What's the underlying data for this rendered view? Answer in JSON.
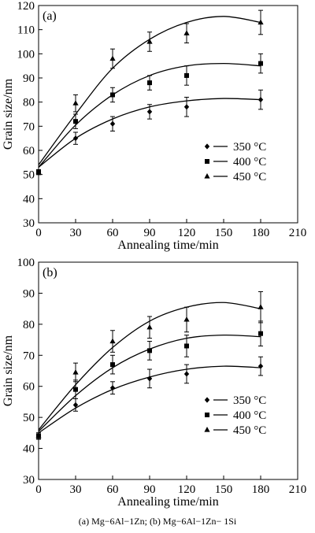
{
  "caption": "(a)  Mg−6Al−1Zn;  (b)  Mg−6Al−1Zn− 1Si",
  "chart_data": [
    {
      "type": "scatter",
      "panel_label": "(a)",
      "xlabel": "Annealing time/min",
      "ylabel": "Grain size/nm",
      "xlim": [
        0,
        210
      ],
      "ylim": [
        30,
        120
      ],
      "xticks": [
        0,
        30,
        60,
        90,
        120,
        150,
        180,
        210
      ],
      "yticks": [
        30,
        40,
        50,
        60,
        70,
        80,
        90,
        100,
        110,
        120
      ],
      "grid": false,
      "legend_position": "center-right",
      "x": [
        0,
        30,
        60,
        90,
        120,
        180
      ],
      "series": [
        {
          "name": "350 °C",
          "marker": "diamond",
          "values": [
            51,
            65,
            71,
            76,
            78,
            81
          ],
          "errors": [
            1,
            2.5,
            3,
            3,
            4,
            4
          ],
          "fit_curve": [
            [
              0,
              53
            ],
            [
              30,
              65
            ],
            [
              60,
              73
            ],
            [
              90,
              78
            ],
            [
              120,
              80.5
            ],
            [
              150,
              81.5
            ],
            [
              180,
              81
            ]
          ]
        },
        {
          "name": "400 °C",
          "marker": "square",
          "values": [
            51,
            72,
            83,
            88,
            91,
            96
          ],
          "errors": [
            1,
            3,
            3,
            3,
            4,
            4
          ],
          "fit_curve": [
            [
              0,
              53
            ],
            [
              30,
              70.5
            ],
            [
              60,
              83
            ],
            [
              90,
              91
            ],
            [
              120,
              95
            ],
            [
              150,
              96
            ],
            [
              180,
              95
            ]
          ]
        },
        {
          "name": "450 °C",
          "marker": "triangle",
          "values": [
            51,
            79.5,
            98,
            105,
            108.5,
            113
          ],
          "errors": [
            1,
            3.5,
            4,
            4,
            4,
            5
          ],
          "fit_curve": [
            [
              0,
              54
            ],
            [
              30,
              75
            ],
            [
              60,
              94
            ],
            [
              90,
              106
            ],
            [
              120,
              113
            ],
            [
              150,
              115.5
            ],
            [
              180,
              113
            ]
          ]
        }
      ]
    },
    {
      "type": "scatter",
      "panel_label": "(b)",
      "xlabel": "Annealing time/min",
      "ylabel": "Grain size/nm",
      "xlim": [
        0,
        210
      ],
      "ylim": [
        30,
        100
      ],
      "xticks": [
        0,
        30,
        60,
        90,
        120,
        150,
        180,
        210
      ],
      "yticks": [
        30,
        40,
        50,
        60,
        70,
        80,
        90,
        100
      ],
      "grid": false,
      "legend_position": "center-right",
      "x": [
        0,
        30,
        60,
        90,
        120,
        180
      ],
      "series": [
        {
          "name": "350 °C",
          "marker": "diamond",
          "values": [
            44,
            54,
            59.5,
            62.5,
            64,
            66.5
          ],
          "errors": [
            1,
            2,
            2,
            3,
            3,
            3
          ],
          "fit_curve": [
            [
              0,
              45
            ],
            [
              30,
              53
            ],
            [
              60,
              59
            ],
            [
              90,
              63
            ],
            [
              120,
              65.5
            ],
            [
              150,
              66.5
            ],
            [
              180,
              66
            ]
          ]
        },
        {
          "name": "400 °C",
          "marker": "square",
          "values": [
            44,
            59,
            67,
            71.5,
            73,
            77
          ],
          "errors": [
            1,
            3,
            3,
            3,
            3.5,
            4
          ],
          "fit_curve": [
            [
              0,
              45.5
            ],
            [
              30,
              57
            ],
            [
              60,
              66
            ],
            [
              90,
              72
            ],
            [
              120,
              75.5
            ],
            [
              150,
              76.5
            ],
            [
              180,
              76
            ]
          ]
        },
        {
          "name": "450 °C",
          "marker": "triangle",
          "values": [
            44,
            64.5,
            74.5,
            79,
            81.5,
            85.5
          ],
          "errors": [
            1,
            3,
            3.5,
            3.5,
            4,
            5
          ],
          "fit_curve": [
            [
              0,
              46
            ],
            [
              30,
              60.5
            ],
            [
              60,
              72.5
            ],
            [
              90,
              81
            ],
            [
              120,
              85.5
            ],
            [
              150,
              87
            ],
            [
              180,
              85
            ]
          ]
        }
      ]
    }
  ]
}
